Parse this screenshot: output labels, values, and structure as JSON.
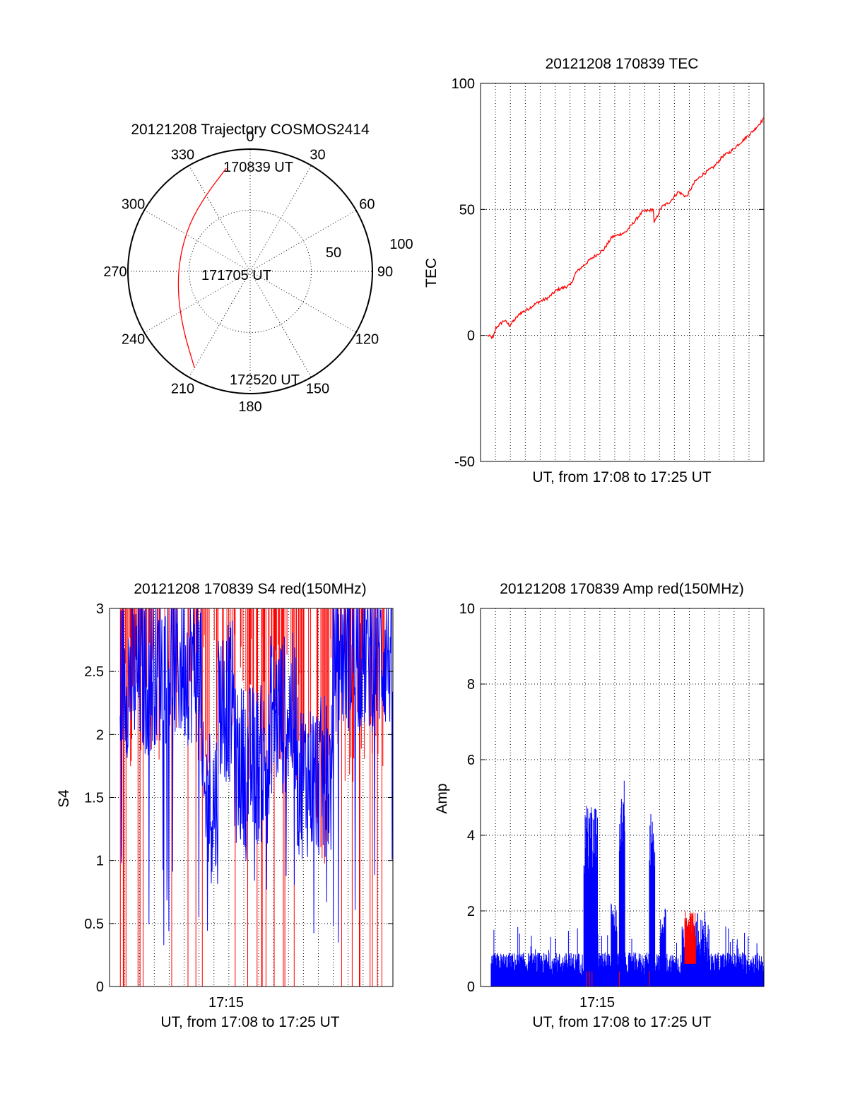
{
  "chart_data": [
    {
      "type": "polar",
      "title": "20121208 Trajectory COSMOS2414",
      "azimuth_labels": [
        "0",
        "30",
        "60",
        "90",
        "120",
        "150",
        "180",
        "210",
        "240",
        "270",
        "300",
        "330"
      ],
      "radial_labels": [
        "50",
        "100"
      ],
      "trajectory_color": "#ff0000",
      "trajectory_points": [
        {
          "azimuth_deg": 347,
          "elevation_deg": 12
        },
        {
          "azimuth_deg": 330,
          "elevation_deg": 25
        },
        {
          "azimuth_deg": 308,
          "elevation_deg": 33
        },
        {
          "azimuth_deg": 280,
          "elevation_deg": 37
        },
        {
          "azimuth_deg": 252,
          "elevation_deg": 34
        },
        {
          "azimuth_deg": 228,
          "elevation_deg": 24
        },
        {
          "azimuth_deg": 210,
          "elevation_deg": 8
        }
      ],
      "annotations": [
        "170839 UT",
        "171705 UT",
        "172520 UT"
      ]
    },
    {
      "type": "line",
      "title": "20121208 170839 TEC",
      "xlabel": "UT, from 17:08 to 17:25 UT",
      "ylabel": "TEC",
      "ylim": [
        -50,
        100
      ],
      "yticks": [
        "100",
        "50",
        "0",
        "-50"
      ],
      "grid": true,
      "series": [
        {
          "color": "#ff0000",
          "x_fraction": [
            0.0,
            0.02,
            0.03,
            0.06,
            0.08,
            0.12,
            0.14,
            0.18,
            0.22,
            0.25,
            0.3,
            0.32,
            0.37,
            0.42,
            0.45,
            0.5,
            0.53,
            0.56,
            0.6,
            0.6,
            0.63,
            0.66,
            0.69,
            0.72,
            0.75,
            0.78,
            0.82,
            0.85,
            0.88,
            0.92,
            0.96,
            1.0
          ],
          "values": [
            0,
            -1,
            3,
            6,
            4,
            9,
            10,
            13,
            15,
            18,
            20,
            25,
            30,
            34,
            39,
            41,
            45,
            49,
            50,
            44,
            51,
            53,
            57,
            55,
            61,
            64,
            67,
            71,
            73,
            77,
            81,
            86
          ]
        }
      ]
    },
    {
      "type": "line",
      "title": "20121208 170839 S4 red(150MHz)",
      "xlabel": "UT, from 17:08 to 17:25 UT",
      "ylabel": "S4",
      "ylim": [
        0,
        3
      ],
      "yticks": [
        "3",
        "2.5",
        "2",
        "1.5",
        "1",
        "0.5",
        "0"
      ],
      "xticks": [
        "17:15"
      ],
      "grid": true,
      "series": [
        {
          "color": "#0000ff"
        },
        {
          "color": "#ff0000"
        }
      ]
    },
    {
      "type": "line",
      "title": "20121208 170839 Amp red(150MHz)",
      "xlabel": "UT, from 17:08 to 17:25 UT",
      "ylabel": "Amp",
      "ylim": [
        0,
        10
      ],
      "yticks": [
        "10",
        "8",
        "6",
        "4",
        "2",
        "0"
      ],
      "xticks": [
        "17:15"
      ],
      "grid": true,
      "series": [
        {
          "color": "#0000ff"
        },
        {
          "color": "#ff0000"
        }
      ]
    }
  ]
}
